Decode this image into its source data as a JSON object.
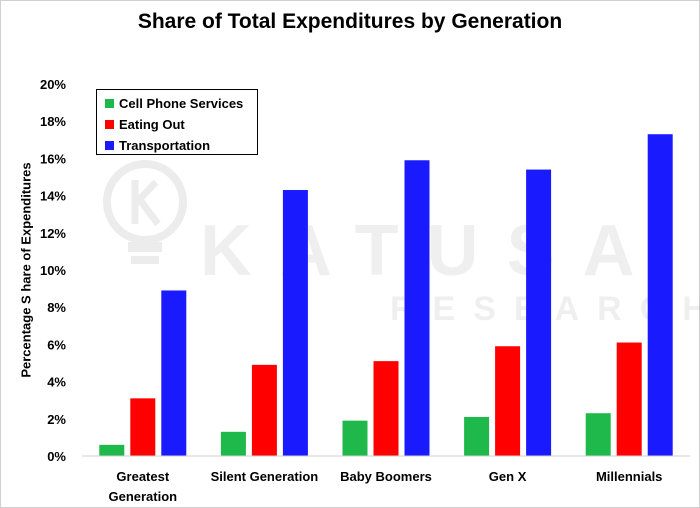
{
  "title": "Share of Total Expenditures by Generation",
  "watermark": {
    "main": "KATUSA",
    "sub": "RESEARCH",
    "logo_icon": "lightbulb-k-icon"
  },
  "chart_data": {
    "type": "bar",
    "title": "Share of Total Expenditures by Generation",
    "xlabel": "",
    "ylabel": "Percentage S hare of Expenditures",
    "ylim": [
      0,
      20
    ],
    "yticks": [
      "0%",
      "2%",
      "4%",
      "6%",
      "8%",
      "10%",
      "12%",
      "14%",
      "16%",
      "18%",
      "20%"
    ],
    "categories": [
      "Greatest Generation",
      "Silent Generation",
      "Baby Boomers",
      "Gen X",
      "Millennials"
    ],
    "category_lines": [
      [
        "Greatest",
        "Generation"
      ],
      [
        "Silent Generation"
      ],
      [
        "Baby Boomers"
      ],
      [
        "Gen X"
      ],
      [
        "Millennials"
      ]
    ],
    "grid": false,
    "legend_position": "top-left",
    "series": [
      {
        "name": "Cell Phone Services",
        "color": "#1fb84a",
        "values": [
          0.6,
          1.3,
          1.9,
          2.1,
          2.3
        ]
      },
      {
        "name": "Eating Out",
        "color": "#ff0000",
        "values": [
          3.1,
          4.9,
          5.1,
          5.9,
          6.1
        ]
      },
      {
        "name": "Transportation",
        "color": "#1a1aff",
        "values": [
          8.9,
          14.3,
          15.9,
          15.4,
          17.3
        ]
      }
    ]
  }
}
